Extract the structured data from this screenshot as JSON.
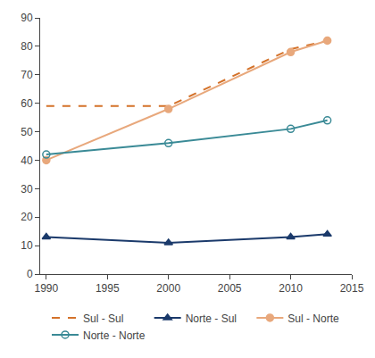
{
  "chart_data": {
    "type": "line",
    "x": [
      1990,
      2000,
      2010,
      2013
    ],
    "series": [
      {
        "name": "Sul - Sul",
        "color": "#D4722A",
        "values": [
          59,
          59,
          79,
          82
        ],
        "line_style": "dashed",
        "marker": "none"
      },
      {
        "name": "Norte - Sul",
        "color": "#1B3A6B",
        "values": [
          13,
          11,
          13,
          14
        ],
        "line_style": "solid",
        "marker": "triangle"
      },
      {
        "name": "Sul - Norte",
        "color": "#E8A87C",
        "values": [
          40,
          58,
          78,
          82
        ],
        "line_style": "solid",
        "marker": "circle"
      },
      {
        "name": "Norte - Norte",
        "color": "#3A8A96",
        "values": [
          42,
          46,
          51,
          54
        ],
        "line_style": "solid",
        "marker": "circle-open"
      }
    ],
    "xlim": [
      1989.5,
      2015
    ],
    "ylim": [
      0,
      90
    ],
    "xticks": [
      1990,
      1995,
      2000,
      2005,
      2010,
      2015
    ],
    "yticks": [
      0,
      10,
      20,
      30,
      40,
      50,
      60,
      70,
      80,
      90
    ],
    "grid": false,
    "legend": "bottom"
  }
}
